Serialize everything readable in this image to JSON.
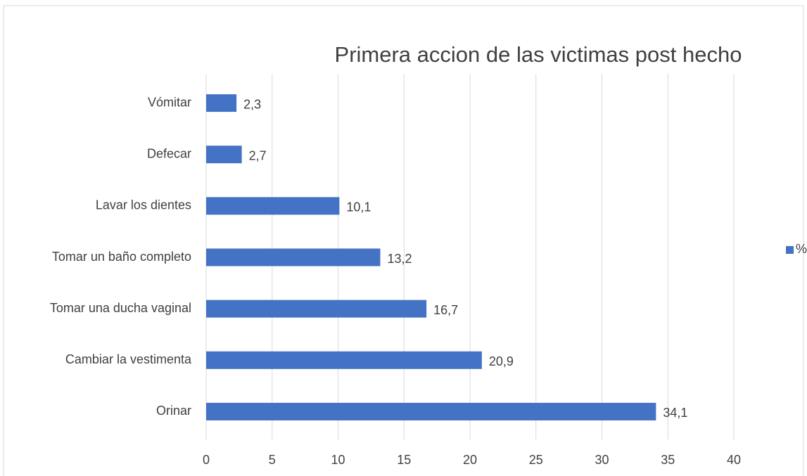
{
  "chart_data": {
    "type": "barh",
    "title": "Primera accion de las victimas post hecho",
    "categories": [
      "Vómitar",
      "Defecar",
      "Lavar los dientes",
      "Tomar un baño completo",
      "Tomar una ducha vaginal",
      "Cambiar la vestimenta",
      "Orinar"
    ],
    "series": [
      {
        "name": "%",
        "color": "#4472c4",
        "values": [
          2.3,
          2.7,
          10.1,
          13.2,
          16.7,
          20.9,
          34.1
        ],
        "value_labels": [
          "2,3",
          "2,7",
          "10,1",
          "13,2",
          "16,7",
          "20,9",
          "34,1"
        ]
      }
    ],
    "xlim": [
      0,
      40
    ],
    "xticks": [
      0,
      5,
      10,
      15,
      20,
      25,
      30,
      35,
      40
    ],
    "grid": true,
    "legend": "right"
  }
}
